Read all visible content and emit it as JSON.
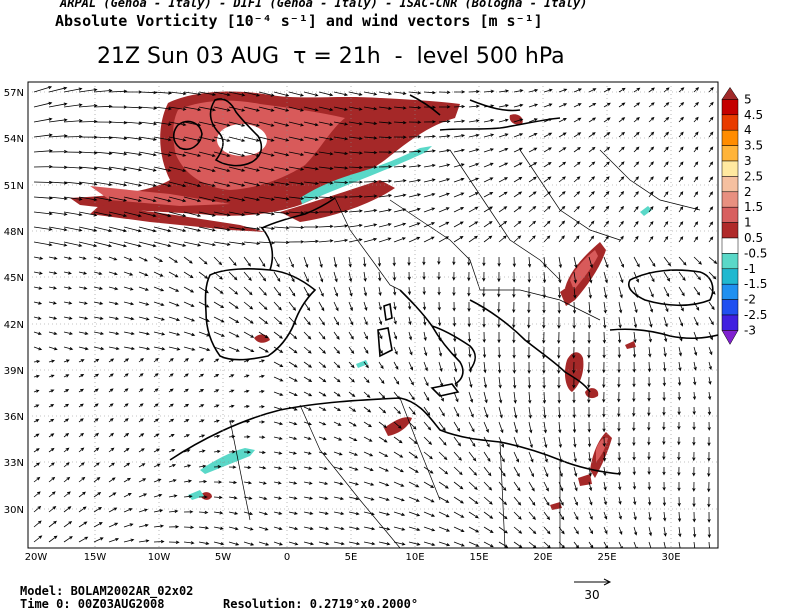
{
  "header": {
    "line1": "ARPAL (Genoa - Italy)  -  DIFI (Genoa - Italy)  -  ISAC-CNR (Bologna - Italy)",
    "line2": "Absolute Vorticity [10⁻⁴ s⁻¹] and wind vectors [m s⁻¹]",
    "title": "21Z Sun 03 AUG  τ = 21h  -  level 500 hPa"
  },
  "lat_labels": [
    "57N",
    "54N",
    "51N",
    "48N",
    "45N",
    "42N",
    "39N",
    "36N",
    "33N",
    "30N"
  ],
  "lon_labels": [
    "20W",
    "15W",
    "10W",
    "5W",
    "0",
    "5E",
    "10E",
    "15E",
    "20E",
    "25E",
    "30E"
  ],
  "colorbar": {
    "labels": [
      "5",
      "4.5",
      "4",
      "3.5",
      "3",
      "2.5",
      "2",
      "1.5",
      "1",
      "0.5",
      "-0.5",
      "-1",
      "-1.5",
      "-2",
      "-2.5",
      "-3"
    ],
    "colors": [
      "#a12a2a",
      "#c40000",
      "#e83c00",
      "#ff8c00",
      "#ffb43a",
      "#ffe9a0",
      "#f5c0a0",
      "#e89080",
      "#d86060",
      "#b02a2a",
      "#ffffff",
      "#5ad8c8",
      "#20b8d0",
      "#2090f0",
      "#2050f0",
      "#4020e0",
      "#8020d0"
    ]
  },
  "footer": {
    "model": "Model: BOLAM2002AR_02x02",
    "time": "Time 0: 00Z03AUG2008",
    "resolution": "Resolution: 0.2719°x0.2000°",
    "ref_vector": "30"
  }
}
